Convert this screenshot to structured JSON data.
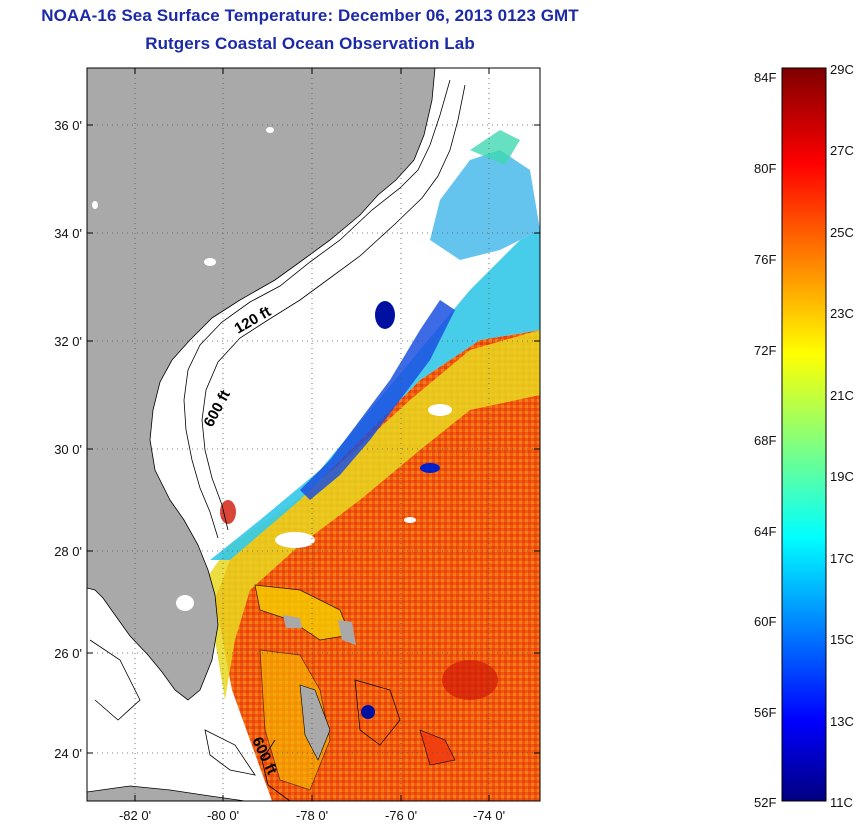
{
  "header": {
    "title": "NOAA-16 Sea Surface Temperature:  December 06, 2013 0123 GMT",
    "subtitle": "Rutgers Coastal Ocean Observation Lab"
  },
  "map": {
    "lat_range": [
      23,
      37.2
    ],
    "lon_range": [
      -83,
      -72.9
    ],
    "lat_ticks": [
      "36 0'",
      "34 0'",
      "32 0'",
      "30 0'",
      "28 0'",
      "26 0'",
      "24 0'"
    ],
    "lon_ticks": [
      "-82 0'",
      "-80 0'",
      "-78 0'",
      "-76 0'",
      "-74 0'"
    ],
    "contour_labels": [
      "120 ft",
      "600 ft",
      "600 ft"
    ],
    "colors": {
      "land": "#a9a9a9",
      "frame": "#000000",
      "title": "#1c2aa8"
    }
  },
  "colorbar": {
    "celsius_labels": [
      "29C",
      "27C",
      "25C",
      "23C",
      "21C",
      "19C",
      "17C",
      "15C",
      "13C",
      "11C"
    ],
    "fahrenheit_labels": [
      "84F",
      "80F",
      "76F",
      "72F",
      "68F",
      "64F",
      "60F",
      "56F",
      "52F"
    ],
    "range_c": [
      11,
      29
    ],
    "colormap": "jet"
  }
}
